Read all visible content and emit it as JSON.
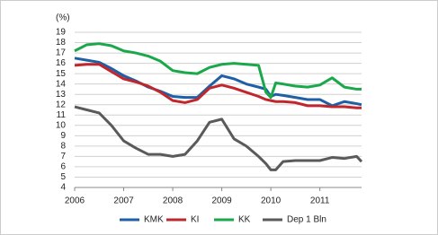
{
  "chart_data": {
    "type": "line",
    "y_label": "(%)",
    "x": [
      2006,
      2006.25,
      2006.5,
      2006.75,
      2007,
      2007.25,
      2007.5,
      2007.75,
      2008,
      2008.25,
      2008.5,
      2008.75,
      2009,
      2009.25,
      2009.5,
      2009.75,
      2009.9,
      2010,
      2010.1,
      2010.25,
      2010.5,
      2010.75,
      2011,
      2011.25,
      2011.5,
      2011.75,
      2011.85
    ],
    "series": [
      {
        "name": "KMK",
        "color": "#1f5fa6",
        "values": [
          16.5,
          16.3,
          16.1,
          15.5,
          14.8,
          14.3,
          13.7,
          13.3,
          12.8,
          12.7,
          12.7,
          13.8,
          14.8,
          14.5,
          14.0,
          13.7,
          13.5,
          12.8,
          13.0,
          12.9,
          12.7,
          12.5,
          12.5,
          11.9,
          12.3,
          12.1,
          12.0
        ]
      },
      {
        "name": "KI",
        "color": "#c0272d",
        "values": [
          15.8,
          15.9,
          15.9,
          15.2,
          14.5,
          14.2,
          13.8,
          13.2,
          12.4,
          12.2,
          12.5,
          13.6,
          13.9,
          13.6,
          13.2,
          12.8,
          12.5,
          12.4,
          12.3,
          12.3,
          12.2,
          11.9,
          11.9,
          11.8,
          11.8,
          11.7,
          11.7
        ]
      },
      {
        "name": "KK",
        "color": "#1aa84a",
        "values": [
          17.2,
          17.8,
          17.9,
          17.7,
          17.2,
          17.0,
          16.7,
          16.2,
          15.3,
          15.1,
          15.0,
          15.6,
          15.9,
          16.0,
          15.9,
          15.8,
          13.2,
          12.7,
          14.1,
          14.0,
          13.8,
          13.7,
          13.9,
          14.6,
          13.7,
          13.5,
          13.5
        ]
      },
      {
        "name": "Dep 1 Bln",
        "color": "#5a5a5a",
        "values": [
          11.8,
          11.5,
          11.2,
          10.0,
          8.5,
          7.8,
          7.2,
          7.2,
          7.0,
          7.2,
          8.5,
          10.3,
          10.6,
          8.7,
          8.0,
          7.0,
          6.3,
          5.7,
          5.7,
          6.5,
          6.6,
          6.6,
          6.6,
          6.9,
          6.8,
          7.0,
          6.5
        ]
      }
    ],
    "xlim": [
      2006,
      2011.85
    ],
    "xticks": [
      2006,
      2007,
      2008,
      2009,
      2010,
      2011
    ],
    "ylim": [
      4,
      19
    ],
    "yticks": [
      4,
      5,
      6,
      7,
      8,
      9,
      10,
      11,
      12,
      13,
      14,
      15,
      16,
      17,
      18,
      19
    ],
    "grid": true
  }
}
